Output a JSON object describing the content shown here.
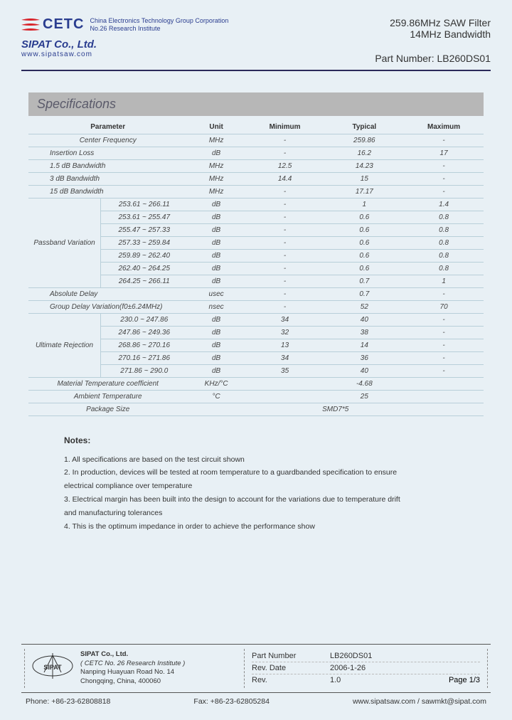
{
  "header": {
    "cetc_text": "CETC",
    "cetc_line1": "China Electronics Technology Group Corporation",
    "cetc_line2": "No.26 Research Institute",
    "sipat": "SIPAT Co., Ltd.",
    "url": "www.sipatsaw.com",
    "prod_title": "259.86MHz SAW Filter",
    "prod_sub": "14MHz Bandwidth",
    "part_number_label": "Part Number: ",
    "part_number": "LB260DS01"
  },
  "section_title": "Specifications",
  "columns": {
    "param": "Parameter",
    "unit": "Unit",
    "min": "Minimum",
    "typ": "Typical",
    "max": "Maximum"
  },
  "rows": [
    {
      "param": "Center Frequency",
      "unit": "MHz",
      "min": "-",
      "typ": "259.86",
      "max": "-"
    },
    {
      "param": "Insertion Loss",
      "unit": "dB",
      "min": "-",
      "typ": "16.2",
      "max": "17"
    },
    {
      "param": "1.5 dB Bandwidth",
      "unit": "MHz",
      "min": "12.5",
      "typ": "14.23",
      "max": "-"
    },
    {
      "param": "3 dB Bandwidth",
      "unit": "MHz",
      "min": "14.4",
      "typ": "15",
      "max": "-"
    },
    {
      "param": "15 dB Bandwidth",
      "unit": "MHz",
      "min": "-",
      "typ": "17.17",
      "max": "-"
    }
  ],
  "passband": {
    "label": "Passband Variation",
    "rows": [
      {
        "range": "253.61 ~ 266.11",
        "unit": "dB",
        "min": "-",
        "typ": "1",
        "max": "1.4"
      },
      {
        "range": "253.61 ~ 255.47",
        "unit": "dB",
        "min": "-",
        "typ": "0.6",
        "max": "0.8"
      },
      {
        "range": "255.47 ~ 257.33",
        "unit": "dB",
        "min": "-",
        "typ": "0.6",
        "max": "0.8"
      },
      {
        "range": "257.33 ~ 259.84",
        "unit": "dB",
        "min": "-",
        "typ": "0.6",
        "max": "0.8"
      },
      {
        "range": "259.89 ~ 262.40",
        "unit": "dB",
        "min": "-",
        "typ": "0.6",
        "max": "0.8"
      },
      {
        "range": "262.40 ~ 264.25",
        "unit": "dB",
        "min": "-",
        "typ": "0.6",
        "max": "0.8"
      },
      {
        "range": "264.25 ~ 266.11",
        "unit": "dB",
        "min": "-",
        "typ": "0.7",
        "max": "1"
      }
    ]
  },
  "mid_rows": [
    {
      "param": "Absolute Delay",
      "unit": "usec",
      "min": "-",
      "typ": "0.7",
      "max": "-"
    },
    {
      "param": "Group Delay Variation(f0±6.24MHz)",
      "unit": "nsec",
      "min": "-",
      "typ": "52",
      "max": "70"
    }
  ],
  "rejection": {
    "label": "Ultimate Rejection",
    "rows": [
      {
        "range": "230.0 ~ 247.86",
        "unit": "dB",
        "min": "34",
        "typ": "40",
        "max": "-"
      },
      {
        "range": "247.86 ~ 249.36",
        "unit": "dB",
        "min": "32",
        "typ": "38",
        "max": "-"
      },
      {
        "range": "268.86 ~ 270.16",
        "unit": "dB",
        "min": "13",
        "typ": "14",
        "max": "-"
      },
      {
        "range": "270.16 ~ 271.86",
        "unit": "dB",
        "min": "34",
        "typ": "36",
        "max": "-"
      },
      {
        "range": "271.86 ~ 290.0",
        "unit": "dB",
        "min": "35",
        "typ": "40",
        "max": "-"
      }
    ]
  },
  "bottom_rows": [
    {
      "param": "Material Temperature coefficient",
      "unit": "KHz/°C",
      "span": "-4.68"
    },
    {
      "param": "Ambient Temperature",
      "unit": "°C",
      "span": "25"
    },
    {
      "param": "Package Size",
      "span_all": "SMD7*5"
    }
  ],
  "notes": {
    "title": "Notes:",
    "items": [
      "1. All specifications are based on the test circuit shown",
      "2. In production, devices will be tested at room temperature to a guardbanded specification to ensure",
      "electrical compliance over temperature",
      "3. Electrical margin has been built into the design to account for the variations due to temperature drift",
      "and manufacturing tolerances",
      "4. This is the optimum impedance in order to achieve the performance show"
    ]
  },
  "footer": {
    "company": "SIPAT Co., Ltd.",
    "inst": "( CETC No. 26 Research Institute )",
    "addr1": "Nanping Huayuan Road No. 14",
    "addr2": "Chongqing, China, 400060",
    "rows": [
      {
        "k": "Part Number",
        "v": "LB260DS01"
      },
      {
        "k": "Rev. Date",
        "v": "2006-1-26"
      },
      {
        "k": "Rev.",
        "v": "1.0",
        "page": "Page   1/3"
      }
    ],
    "phone": "Phone: +86-23-62808818",
    "fax": "Fax: +86-23-62805284",
    "web": "www.sipatsaw.com / sawmkt@sipat.com"
  }
}
